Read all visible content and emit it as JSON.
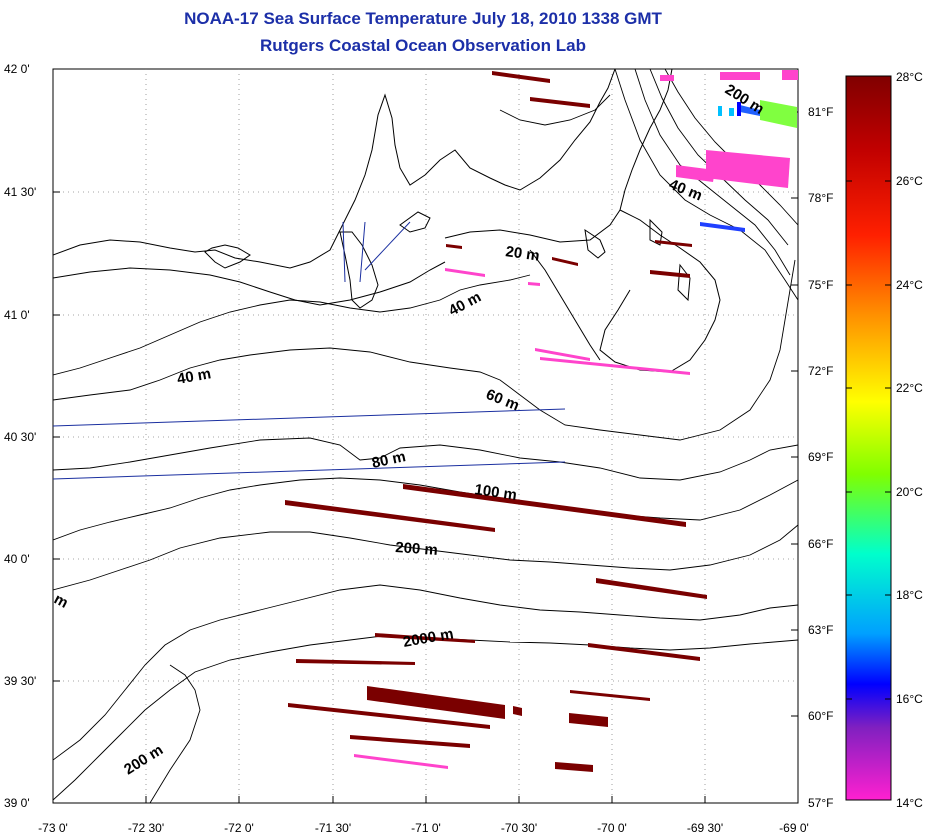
{
  "title": {
    "line1": "NOAA-17 Sea Surface Temperature July 18, 2010 1338 GMT",
    "line2": "Rutgers Coastal Ocean Observation Lab"
  },
  "map": {
    "lat_labels": [
      "42 0'",
      "41 30'",
      "41 0'",
      "40 30'",
      "40 0'",
      "39 30'",
      "39 0'"
    ],
    "lon_labels": [
      "-73 0'",
      "-72 30'",
      "-72 0'",
      "-71 30'",
      "-71 0'",
      "-70 30'",
      "-70 0'",
      "-69 30'",
      "-69 0'"
    ],
    "contour_labels": [
      "200 m",
      "40 m",
      "20 m",
      "40 m",
      "40 m",
      "60 m",
      "80 m",
      "100 m",
      "200 m",
      "2000 m",
      "200 m",
      "m"
    ],
    "colors": {
      "title": "#1c2fa8",
      "land": "#000000",
      "sst_warm": "#7a0000",
      "sst_cool": "#ff44cc",
      "track": "#1a2fa0"
    }
  },
  "colorbar": {
    "celsius_labels": [
      "28°C",
      "26°C",
      "24°C",
      "22°C",
      "20°C",
      "18°C",
      "16°C",
      "14°C"
    ],
    "fahrenheit_labels": [
      "81°F",
      "78°F",
      "75°F",
      "72°F",
      "69°F",
      "66°F",
      "63°F",
      "60°F",
      "57°F"
    ],
    "range_c": [
      14,
      28
    ],
    "range_f": [
      57,
      82.4
    ],
    "colors": [
      "#800000",
      "#ff0000",
      "#ff8000",
      "#ffff00",
      "#80ff00",
      "#00ffcc",
      "#00aaff",
      "#0000ff",
      "#8000c0",
      "#ff00cc"
    ]
  }
}
